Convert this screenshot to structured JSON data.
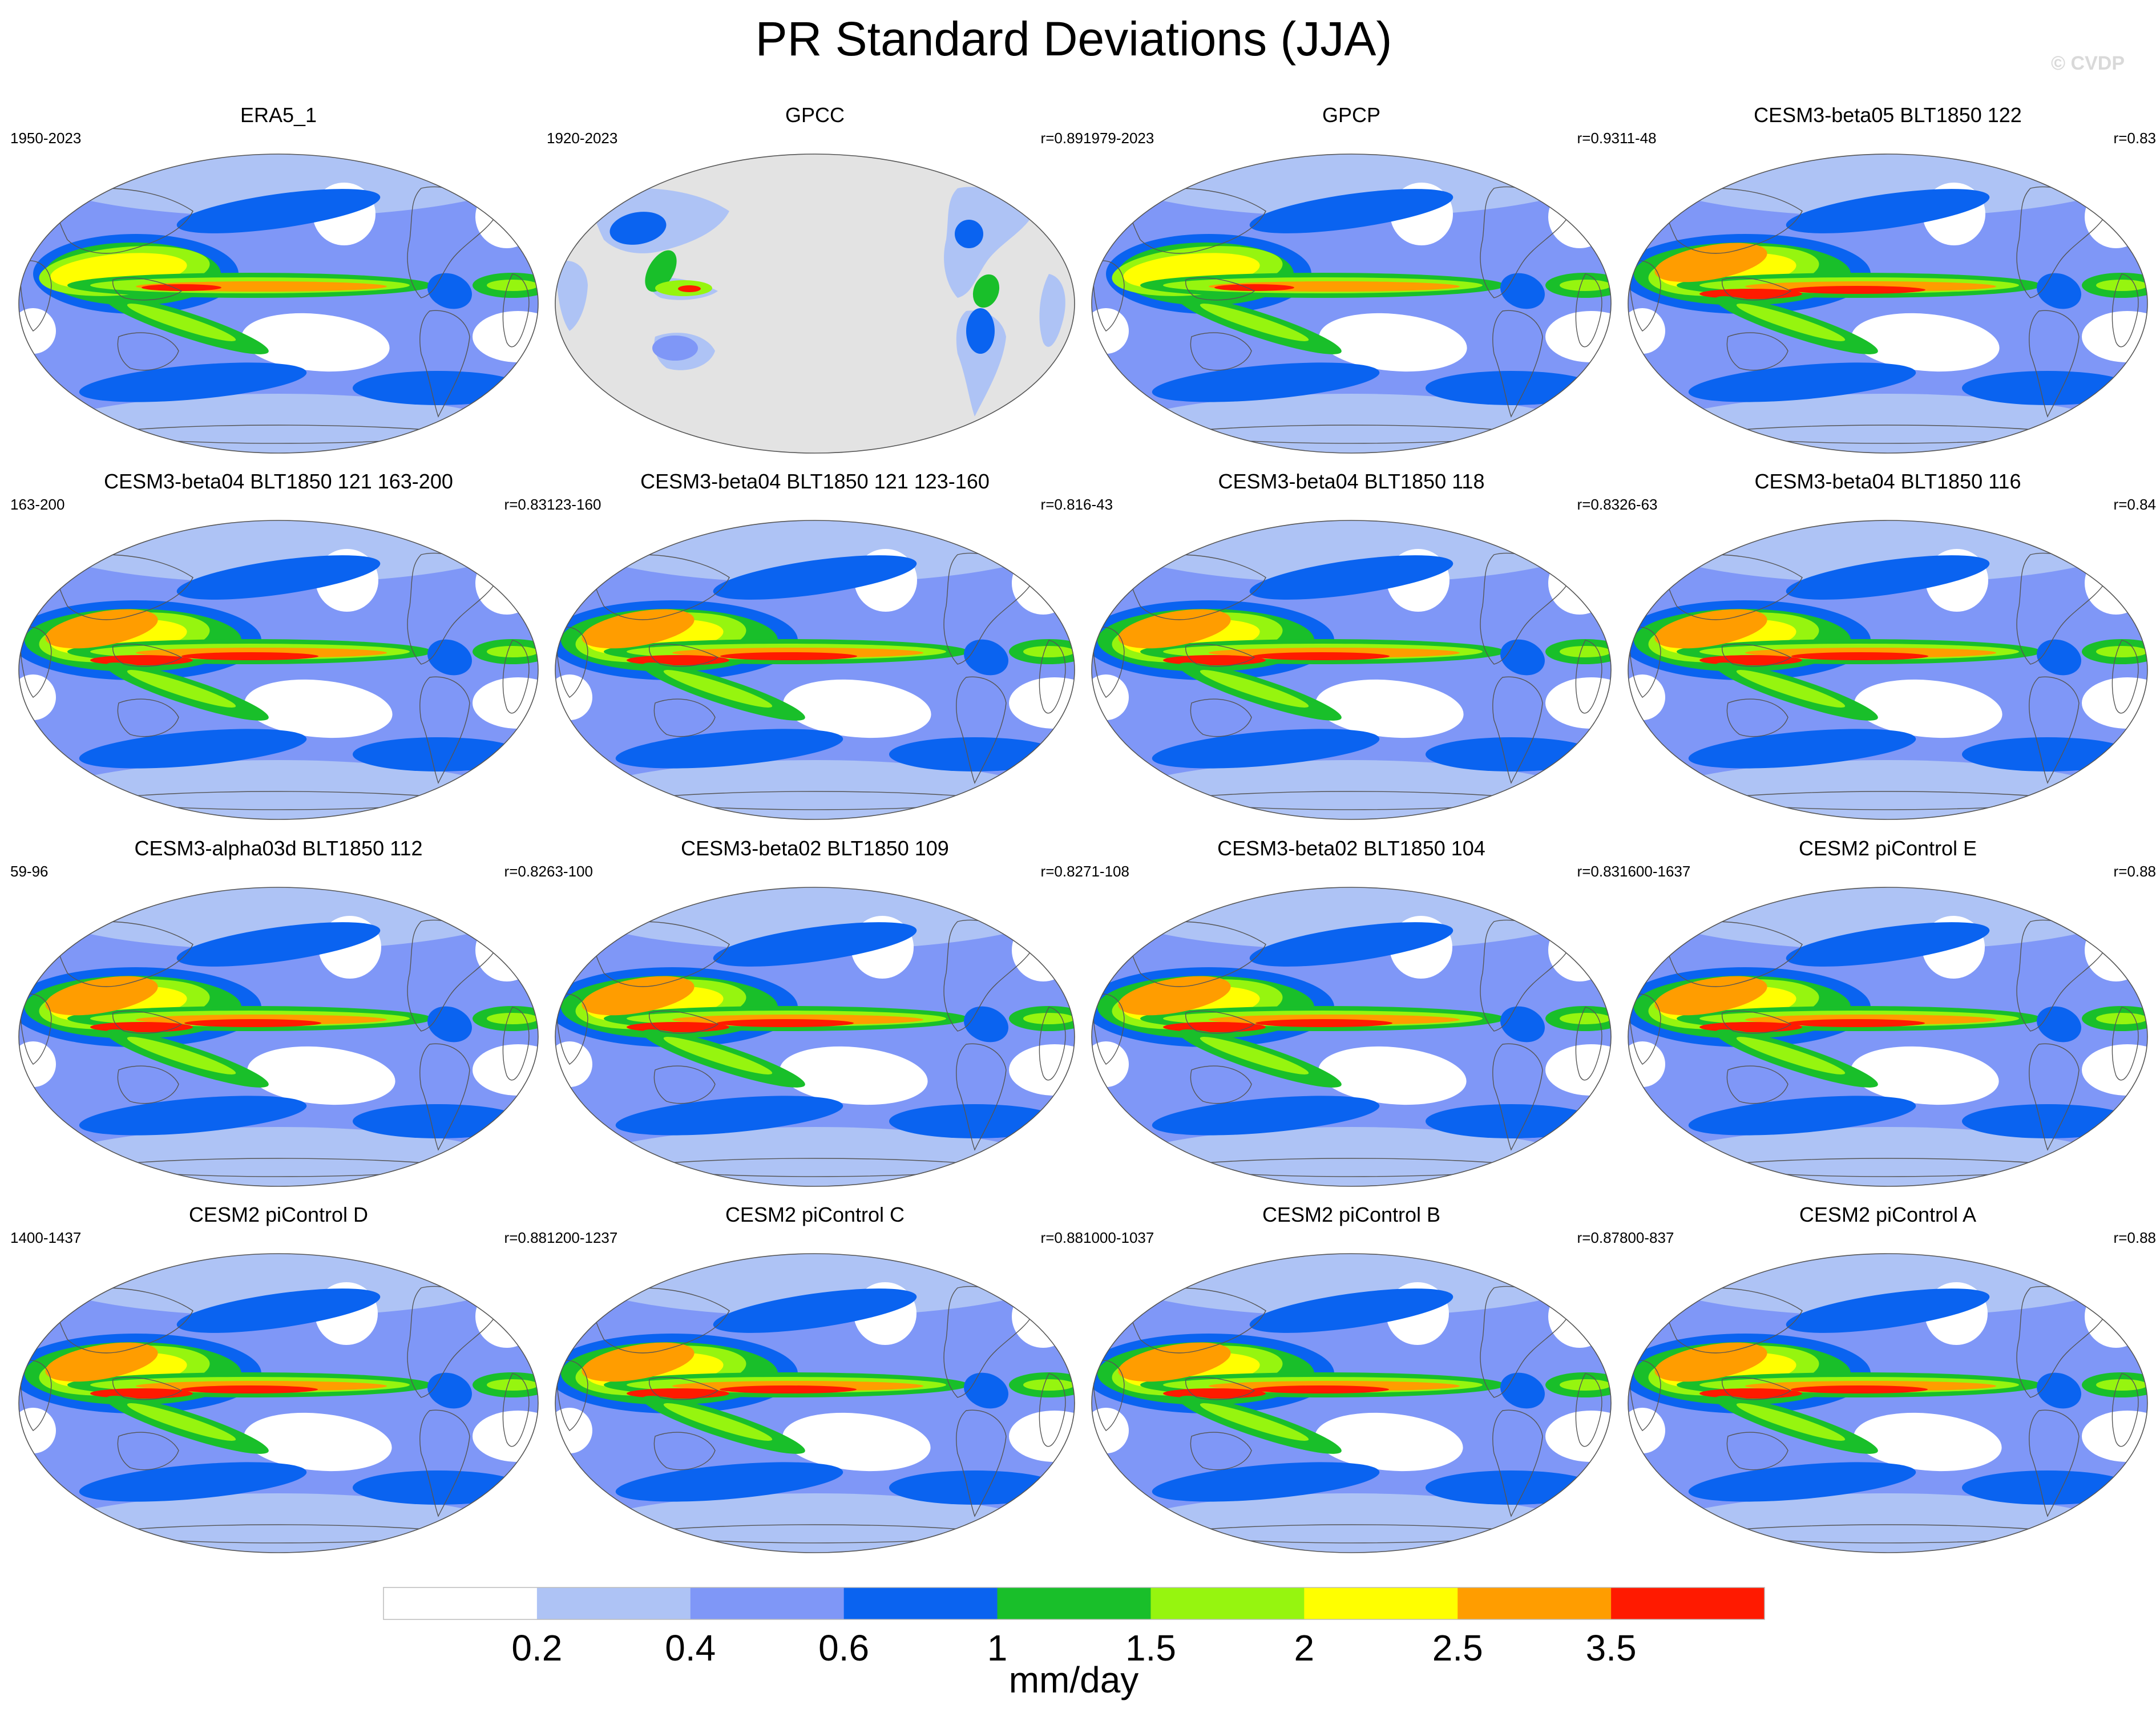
{
  "title": "PR Standard Deviations (JJA)",
  "watermark": "© CVDP",
  "panels": [
    {
      "title": "ERA5_1",
      "years": "1950-2023",
      "r": "",
      "pattern": "obs"
    },
    {
      "title": "GPCC",
      "years": "1920-2023",
      "r": "r=0.89",
      "pattern": "land"
    },
    {
      "title": "GPCP",
      "years": "1979-2023",
      "r": "r=0.93",
      "pattern": "obs"
    },
    {
      "title": "CESM3-beta05 BLT1850 122",
      "years": "11-48",
      "r": "r=0.83",
      "pattern": "model"
    },
    {
      "title": "CESM3-beta04 BLT1850 121 163-200",
      "years": "163-200",
      "r": "r=0.83",
      "pattern": "model"
    },
    {
      "title": "CESM3-beta04 BLT1850 121 123-160",
      "years": "123-160",
      "r": "r=0.81",
      "pattern": "model"
    },
    {
      "title": "CESM3-beta04 BLT1850 118",
      "years": "6-43",
      "r": "r=0.83",
      "pattern": "model"
    },
    {
      "title": "CESM3-beta04 BLT1850 116",
      "years": "26-63",
      "r": "r=0.84",
      "pattern": "model"
    },
    {
      "title": "CESM3-alpha03d BLT1850 112",
      "years": "59-96",
      "r": "r=0.82",
      "pattern": "model"
    },
    {
      "title": "CESM3-beta02 BLT1850 109",
      "years": "63-100",
      "r": "r=0.82",
      "pattern": "model"
    },
    {
      "title": "CESM3-beta02 BLT1850 104",
      "years": "71-108",
      "r": "r=0.83",
      "pattern": "model"
    },
    {
      "title": "CESM2 piControl E",
      "years": "1600-1637",
      "r": "r=0.88",
      "pattern": "model"
    },
    {
      "title": "CESM2 piControl D",
      "years": "1400-1437",
      "r": "r=0.88",
      "pattern": "model"
    },
    {
      "title": "CESM2 piControl C",
      "years": "1200-1237",
      "r": "r=0.88",
      "pattern": "model"
    },
    {
      "title": "CESM2 piControl B",
      "years": "1000-1037",
      "r": "r=0.87",
      "pattern": "model"
    },
    {
      "title": "CESM2 piControl A",
      "years": "800-837",
      "r": "r=0.88",
      "pattern": "model"
    }
  ],
  "colorbar": {
    "unit": "mm/day",
    "labels": [
      "0.2",
      "0.4",
      "0.6",
      "1",
      "1.5",
      "2",
      "2.5",
      "3.5"
    ],
    "colors": [
      "#ffffff",
      "#aec3f5",
      "#7f97f7",
      "#0a63f0",
      "#19bf2a",
      "#96f50f",
      "#ffff00",
      "#ff9d00",
      "#ff1a00"
    ],
    "missing_color": "#e3e3e3"
  }
}
